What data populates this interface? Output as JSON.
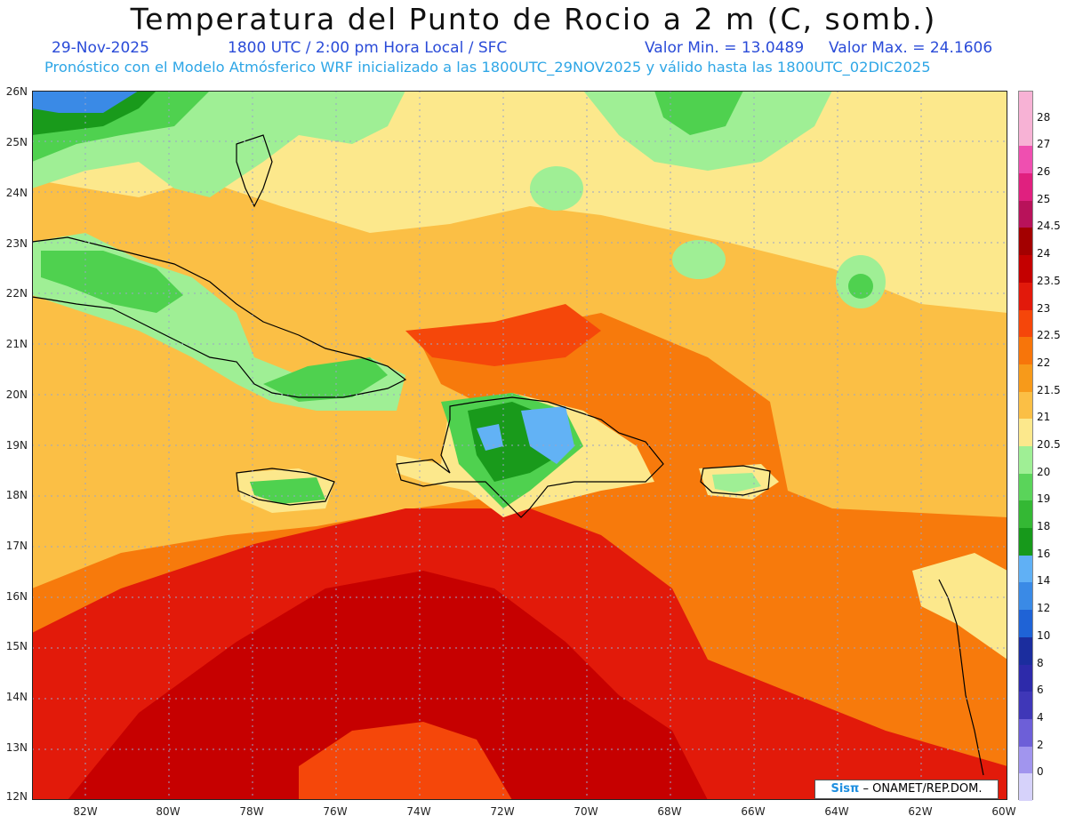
{
  "header": {
    "title": "Temperatura del Punto de Rocio a 2 m (C, somb.)",
    "date": "29-Nov-2025",
    "time": "1800 UTC / 2:00 pm Hora Local / SFC",
    "min": "Valor Min. = 13.0489",
    "max": "Valor Max. = 24.1606",
    "forecast": "Pronóstico con el Modelo Atmósferico WRF inicializado a las 1800UTC_29NOV2025 y válido hasta las  1800UTC_02DIC2025"
  },
  "axes": {
    "lat_labels": [
      "26N",
      "25N",
      "24N",
      "23N",
      "22N",
      "21N",
      "20N",
      "19N",
      "18N",
      "17N",
      "16N",
      "15N",
      "14N",
      "13N",
      "12N"
    ],
    "lon_labels": [
      "82W",
      "80W",
      "78W",
      "76W",
      "74W",
      "72W",
      "70W",
      "68W",
      "66W",
      "64W",
      "62W",
      "60W"
    ]
  },
  "colorbar": {
    "labels": [
      "28",
      "27",
      "26",
      "25",
      "24.5",
      "24",
      "23.5",
      "23",
      "22.5",
      "22",
      "21.5",
      "21",
      "20.5",
      "20",
      "19",
      "18",
      "16",
      "14",
      "12",
      "10",
      "8",
      "6",
      "4",
      "2",
      "0"
    ],
    "colors": [
      "#f7b2d5",
      "#ef4fb0",
      "#e0207f",
      "#b8125a",
      "#a30000",
      "#c40000",
      "#e2190b",
      "#f5460a",
      "#f7750a",
      "#f79a1a",
      "#fbbf45",
      "#fce88c",
      "#9fef95",
      "#5ad45a",
      "#34b834",
      "#17991b",
      "#60b0f5",
      "#3a8ae6",
      "#1f63d6",
      "#1b2d9e",
      "#2d2aaa",
      "#3f37b8",
      "#6d5fd8",
      "#a195ee",
      "#d6d2fa"
    ],
    "top_color": "#f7b2d5"
  },
  "map": {
    "background": "#fbbf45",
    "color_scale": {
      "red_dark": "#c60000",
      "red": "#e21a0a",
      "orange_red": "#f5470a",
      "orange": "#f77a0c",
      "light_orange": "#f9a823",
      "yellow": "#fce88c",
      "green_light": "#9fef95",
      "green": "#4fd14f",
      "green_dark": "#199a1b",
      "blue_light": "#62b2f5",
      "blue": "#3a8ae6"
    }
  },
  "credit": {
    "brand": "Sisπ",
    "text": "– ONAMET/REP.DOM."
  }
}
